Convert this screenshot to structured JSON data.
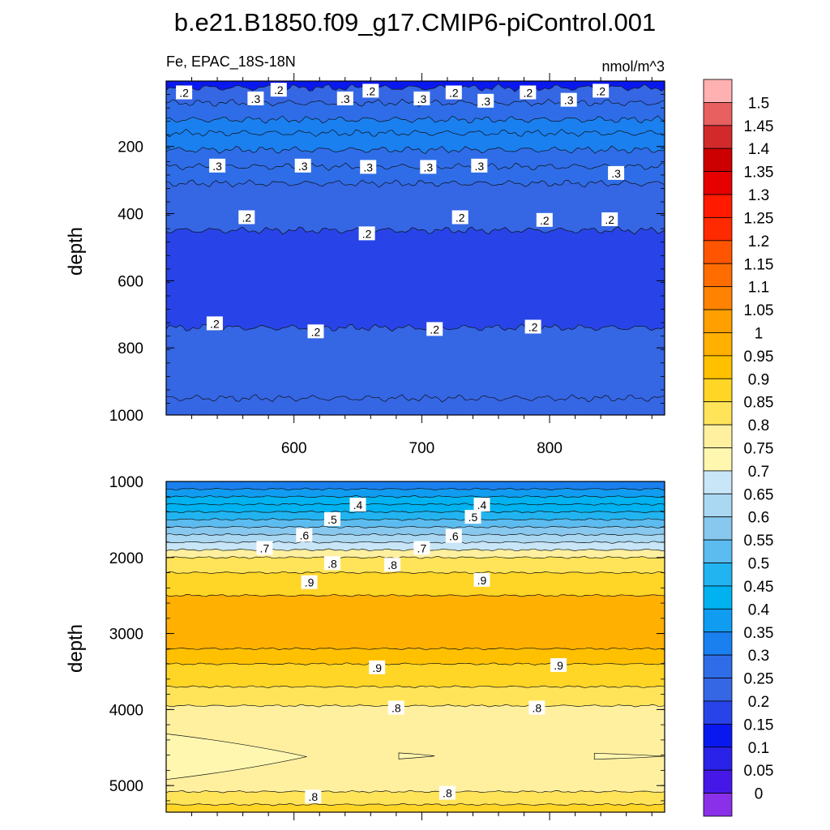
{
  "title": "b.e21.B1850.f09_g17.CMIP6-piControl.001",
  "subtitle_left": "Fe, EPAC_18S-18N",
  "subtitle_right": "nmol/m^3",
  "chart_data": [
    {
      "type": "heatmap",
      "panel": "upper",
      "xlabel": "",
      "ylabel": "depth",
      "xlim": [
        500,
        890
      ],
      "ylim": [
        1000,
        5
      ],
      "x_ticks": [
        "600",
        "700",
        "800"
      ],
      "y_ticks": [
        "200",
        "400",
        "600",
        "800",
        "1000"
      ],
      "bands": [
        {
          "top": 5,
          "bottom": 25,
          "value": 0.125
        },
        {
          "top": 25,
          "bottom": 70,
          "value": 0.225
        },
        {
          "top": 70,
          "bottom": 120,
          "value": 0.275
        },
        {
          "top": 120,
          "bottom": 160,
          "value": 0.325
        },
        {
          "top": 160,
          "bottom": 210,
          "value": 0.325
        },
        {
          "top": 210,
          "bottom": 260,
          "value": 0.275
        },
        {
          "top": 260,
          "bottom": 310,
          "value": 0.25
        },
        {
          "top": 310,
          "bottom": 450,
          "value": 0.225
        },
        {
          "top": 450,
          "bottom": 740,
          "value": 0.175
        },
        {
          "top": 740,
          "bottom": 950,
          "value": 0.225
        },
        {
          "top": 950,
          "bottom": 1000,
          "value": 0.225
        }
      ],
      "contour_labels": [
        {
          "x": 514,
          "y": 40,
          "text": ".2"
        },
        {
          "x": 570,
          "y": 58,
          "text": ".3"
        },
        {
          "x": 588,
          "y": 32,
          "text": ".2"
        },
        {
          "x": 640,
          "y": 58,
          "text": ".3"
        },
        {
          "x": 660,
          "y": 35,
          "text": ".2"
        },
        {
          "x": 700,
          "y": 58,
          "text": ".3"
        },
        {
          "x": 725,
          "y": 40,
          "text": ".2"
        },
        {
          "x": 750,
          "y": 65,
          "text": ".3"
        },
        {
          "x": 783,
          "y": 40,
          "text": ".2"
        },
        {
          "x": 815,
          "y": 62,
          "text": ".3"
        },
        {
          "x": 840,
          "y": 35,
          "text": ".2"
        },
        {
          "x": 540,
          "y": 258,
          "text": ".3"
        },
        {
          "x": 607,
          "y": 258,
          "text": ".3"
        },
        {
          "x": 658,
          "y": 262,
          "text": ".3"
        },
        {
          "x": 705,
          "y": 262,
          "text": ".3"
        },
        {
          "x": 745,
          "y": 258,
          "text": ".3"
        },
        {
          "x": 852,
          "y": 280,
          "text": ".3"
        },
        {
          "x": 563,
          "y": 412,
          "text": ".2"
        },
        {
          "x": 657,
          "y": 460,
          "text": ".2"
        },
        {
          "x": 730,
          "y": 412,
          "text": ".2"
        },
        {
          "x": 796,
          "y": 420,
          "text": ".2"
        },
        {
          "x": 847,
          "y": 418,
          "text": ".2"
        },
        {
          "x": 538,
          "y": 728,
          "text": ".2"
        },
        {
          "x": 617,
          "y": 752,
          "text": ".2"
        },
        {
          "x": 710,
          "y": 745,
          "text": ".2"
        },
        {
          "x": 787,
          "y": 738,
          "text": ".2"
        }
      ]
    },
    {
      "type": "heatmap",
      "panel": "lower",
      "xlabel": "",
      "ylabel": "depth",
      "xlim": [
        500,
        890
      ],
      "ylim": [
        5350,
        1000
      ],
      "x_ticks": [],
      "y_ticks": [
        "1000",
        "2000",
        "3000",
        "4000",
        "5000"
      ],
      "bands": [
        {
          "top": 1000,
          "bottom": 1100,
          "value": 0.325
        },
        {
          "top": 1100,
          "bottom": 1200,
          "value": 0.375
        },
        {
          "top": 1200,
          "bottom": 1300,
          "value": 0.4
        },
        {
          "top": 1300,
          "bottom": 1400,
          "value": 0.425
        },
        {
          "top": 1400,
          "bottom": 1500,
          "value": 0.475
        },
        {
          "top": 1500,
          "bottom": 1600,
          "value": 0.525
        },
        {
          "top": 1600,
          "bottom": 1700,
          "value": 0.575
        },
        {
          "top": 1700,
          "bottom": 1800,
          "value": 0.625
        },
        {
          "top": 1800,
          "bottom": 1900,
          "value": 0.675
        },
        {
          "top": 1900,
          "bottom": 2000,
          "value": 0.775
        },
        {
          "top": 2000,
          "bottom": 2200,
          "value": 0.825
        },
        {
          "top": 2200,
          "bottom": 2500,
          "value": 0.875
        },
        {
          "top": 2500,
          "bottom": 3200,
          "value": 0.975
        },
        {
          "top": 3200,
          "bottom": 3400,
          "value": 0.925
        },
        {
          "top": 3400,
          "bottom": 3700,
          "value": 0.875
        },
        {
          "top": 3700,
          "bottom": 3950,
          "value": 0.825
        },
        {
          "top": 3950,
          "bottom": 5080,
          "value": 0.775
        },
        {
          "top": 5080,
          "bottom": 5250,
          "value": 0.825
        },
        {
          "top": 5250,
          "bottom": 5350,
          "value": 0.875
        }
      ],
      "patches": [
        {
          "value": 0.725,
          "x_start": 500,
          "x_end": 610,
          "depth_center": 4620,
          "half_thickness": 300
        },
        {
          "value": 0.725,
          "x_start": 682,
          "x_end": 710,
          "depth_center": 4610,
          "half_thickness": 40
        },
        {
          "value": 0.725,
          "x_start": 835,
          "x_end": 890,
          "depth_center": 4615,
          "half_thickness": 40
        }
      ],
      "contour_labels": [
        {
          "x": 650,
          "y": 1310,
          "text": ".4"
        },
        {
          "x": 630,
          "y": 1500,
          "text": ".5"
        },
        {
          "x": 608,
          "y": 1710,
          "text": ".6"
        },
        {
          "x": 577,
          "y": 1880,
          "text": ".7"
        },
        {
          "x": 630,
          "y": 2080,
          "text": ".8"
        },
        {
          "x": 612,
          "y": 2330,
          "text": ".9"
        },
        {
          "x": 747,
          "y": 1310,
          "text": ".4"
        },
        {
          "x": 740,
          "y": 1470,
          "text": ".5"
        },
        {
          "x": 725,
          "y": 1720,
          "text": ".6"
        },
        {
          "x": 700,
          "y": 1880,
          "text": ".7"
        },
        {
          "x": 677,
          "y": 2100,
          "text": ".8"
        },
        {
          "x": 747,
          "y": 2300,
          "text": ".9"
        },
        {
          "x": 665,
          "y": 3450,
          "text": ".9"
        },
        {
          "x": 680,
          "y": 3980,
          "text": ".8"
        },
        {
          "x": 807,
          "y": 3420,
          "text": ".9"
        },
        {
          "x": 790,
          "y": 3980,
          "text": ".8"
        },
        {
          "x": 615,
          "y": 5150,
          "text": ".8"
        },
        {
          "x": 720,
          "y": 5100,
          "text": ".8"
        }
      ]
    }
  ],
  "colorbar": {
    "labels": [
      "1.5",
      "1.45",
      "1.4",
      "1.35",
      "1.3",
      "1.25",
      "1.2",
      "1.15",
      "1.1",
      "1.05",
      "1",
      "0.95",
      "0.9",
      "0.85",
      "0.8",
      "0.75",
      "0.7",
      "0.65",
      "0.6",
      "0.55",
      "0.5",
      "0.45",
      "0.4",
      "0.35",
      "0.3",
      "0.25",
      "0.2",
      "0.15",
      "0.1",
      "0.05",
      "0"
    ],
    "colors_top_to_bottom": [
      "#ffb1b1",
      "#e86060",
      "#d22a2a",
      "#cc0000",
      "#e60000",
      "#ff1a00",
      "#ff2a00",
      "#ff5500",
      "#ff6c00",
      "#ff8200",
      "#ffa000",
      "#ffb000",
      "#ffc000",
      "#ffd526",
      "#ffe45a",
      "#fff0a0",
      "#fff7b0",
      "#c8e6f8",
      "#aad8f2",
      "#88c8ee",
      "#5cbcf0",
      "#22b4f0",
      "#00b2f0",
      "#109cf0",
      "#1a80f0",
      "#2f6de8",
      "#3566e4",
      "#2844e8",
      "#0a18f0",
      "#2a22e8",
      "#4618e8",
      "#8a30e8"
    ]
  }
}
